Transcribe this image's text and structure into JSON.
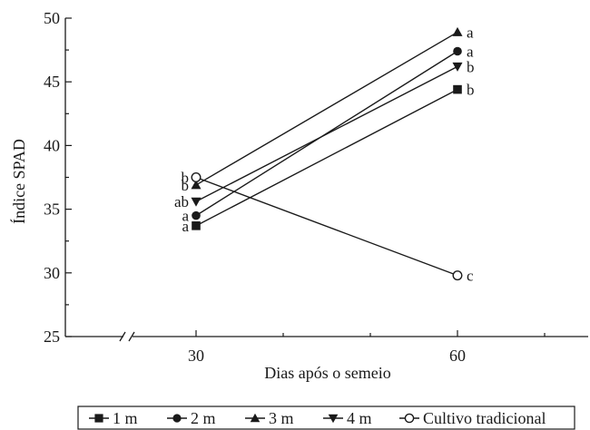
{
  "chart_data": {
    "type": "line",
    "xlabel": "Dias após o semeio",
    "ylabel": "Índice SPAD",
    "x": [
      30,
      60
    ],
    "xlim": [
      15,
      75
    ],
    "ylim": [
      25,
      50
    ],
    "yticks": [
      25,
      30,
      35,
      40,
      45,
      50
    ],
    "axis_break": true,
    "series": [
      {
        "name": "1 m",
        "marker": "square-filled",
        "values": [
          33.7,
          44.4
        ],
        "sig_labels": [
          "a",
          "b"
        ]
      },
      {
        "name": "2 m",
        "marker": "circle-filled",
        "values": [
          34.5,
          47.4
        ],
        "sig_labels": [
          "a",
          "a"
        ]
      },
      {
        "name": "3 m",
        "marker": "triangle-up-filled",
        "values": [
          36.9,
          48.9
        ],
        "sig_labels": [
          "b",
          "a"
        ]
      },
      {
        "name": "4 m",
        "marker": "triangle-down-filled",
        "values": [
          35.6,
          46.2
        ],
        "sig_labels": [
          "ab",
          "b"
        ]
      },
      {
        "name": "Cultivo tradicional",
        "marker": "circle-open",
        "values": [
          37.5,
          29.8
        ],
        "sig_labels": [
          "b",
          "c"
        ]
      }
    ],
    "legend": {
      "position": "bottom"
    },
    "grid": false
  }
}
